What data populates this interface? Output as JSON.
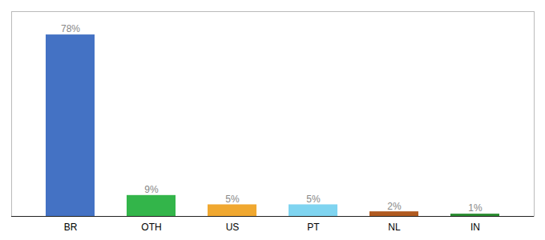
{
  "chart_data": {
    "type": "bar",
    "categories": [
      "BR",
      "OTH",
      "US",
      "PT",
      "NL",
      "IN"
    ],
    "values": [
      78,
      9,
      5,
      5,
      2,
      1
    ],
    "value_labels": [
      "78%",
      "9%",
      "5%",
      "5%",
      "2%",
      "1%"
    ],
    "colors": [
      "#4472c4",
      "#33b54a",
      "#f0a830",
      "#7fd4f0",
      "#b05a20",
      "#2a8c30"
    ],
    "ylim": [
      0,
      88
    ],
    "data_labels": true,
    "tick_labels": "x",
    "grid": false
  }
}
